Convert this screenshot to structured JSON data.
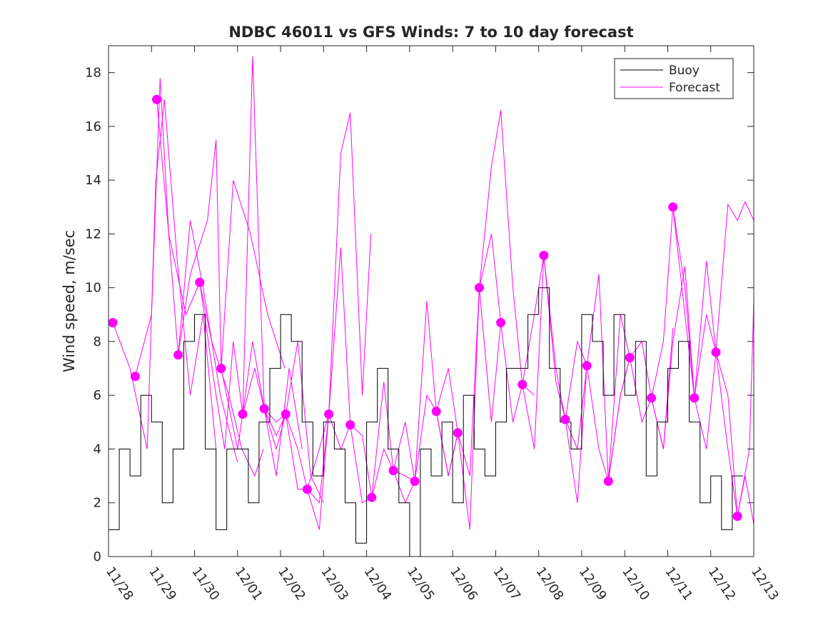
{
  "chart_data": {
    "type": "line",
    "title": "NDBC 46011 vs GFS Winds: 7 to 10 day forecast",
    "xlabel": "",
    "ylabel": "Wind speed, m/sec",
    "xlim": [
      0,
      15
    ],
    "ylim": [
      0,
      19
    ],
    "grid": false,
    "legend_position": "top-right",
    "x_tick_labels": [
      "11/28",
      "11/29",
      "11/30",
      "12/01",
      "12/02",
      "12/03",
      "12/04",
      "12/05",
      "12/06",
      "12/07",
      "12/08",
      "12/09",
      "12/10",
      "12/11",
      "12/12",
      "12/13"
    ],
    "y_ticks": [
      0,
      2,
      4,
      6,
      8,
      10,
      12,
      14,
      16,
      18
    ],
    "legend": [
      {
        "name": "Buoy",
        "color": "#000000"
      },
      {
        "name": "Forecast",
        "color": "#ff00ff"
      }
    ],
    "colors": {
      "buoy": "#000000",
      "forecast": "#ff00ff"
    },
    "series": [
      {
        "name": "Buoy",
        "x_day_offset": [
          0.0,
          0.25,
          0.5,
          0.75,
          1.0,
          1.25,
          1.5,
          1.75,
          2.0,
          2.25,
          2.5,
          2.75,
          3.0,
          3.25,
          3.5,
          3.75,
          4.0,
          4.25,
          4.5,
          4.75,
          5.0,
          5.25,
          5.5,
          5.75,
          6.0,
          6.25,
          6.5,
          6.75,
          7.0,
          7.25,
          7.5,
          7.75,
          8.0,
          8.25,
          8.5,
          8.75,
          9.0,
          9.25,
          9.5,
          9.75,
          10.0,
          10.25,
          10.5,
          10.75,
          11.0,
          11.25,
          11.5,
          11.75,
          12.0,
          12.25,
          12.5,
          12.75,
          13.0,
          13.25,
          13.5,
          13.75,
          14.0,
          14.25,
          14.5,
          14.75
        ],
        "values": [
          1,
          4,
          3,
          6,
          5,
          2,
          4,
          8,
          9,
          4,
          1,
          4,
          4,
          2,
          5,
          7,
          9,
          8,
          5,
          3,
          5,
          4,
          2,
          0.5,
          5,
          7,
          4,
          2,
          0,
          4,
          3,
          5,
          2,
          6,
          4,
          3,
          5,
          7,
          7,
          9,
          10,
          7,
          5,
          4,
          9,
          8,
          6,
          9,
          6,
          8,
          3,
          5,
          7,
          8,
          5,
          2,
          3,
          1,
          3,
          3
        ]
      },
      {
        "name": "Forecast",
        "markers": [
          {
            "x": 0.1,
            "y": 8.7
          },
          {
            "x": 0.62,
            "y": 6.7
          },
          {
            "x": 1.12,
            "y": 17.0
          },
          {
            "x": 1.62,
            "y": 7.5
          },
          {
            "x": 2.12,
            "y": 10.2
          },
          {
            "x": 2.62,
            "y": 7.0
          },
          {
            "x": 3.12,
            "y": 5.3
          },
          {
            "x": 3.62,
            "y": 5.5
          },
          {
            "x": 4.12,
            "y": 5.3
          },
          {
            "x": 4.62,
            "y": 2.5
          },
          {
            "x": 5.12,
            "y": 5.3
          },
          {
            "x": 5.62,
            "y": 4.9
          },
          {
            "x": 6.12,
            "y": 2.2
          },
          {
            "x": 6.62,
            "y": 3.2
          },
          {
            "x": 7.12,
            "y": 2.8
          },
          {
            "x": 7.62,
            "y": 5.4
          },
          {
            "x": 8.12,
            "y": 4.6
          },
          {
            "x": 8.62,
            "y": 10.0
          },
          {
            "x": 9.12,
            "y": 8.7
          },
          {
            "x": 9.62,
            "y": 6.4
          },
          {
            "x": 10.12,
            "y": 11.2
          },
          {
            "x": 10.62,
            "y": 5.1
          },
          {
            "x": 11.12,
            "y": 7.1
          },
          {
            "x": 11.62,
            "y": 2.8
          },
          {
            "x": 12.12,
            "y": 7.4
          },
          {
            "x": 12.62,
            "y": 5.9
          },
          {
            "x": 13.12,
            "y": 13.0
          },
          {
            "x": 13.62,
            "y": 5.9
          },
          {
            "x": 14.12,
            "y": 7.6
          },
          {
            "x": 14.62,
            "y": 1.5
          }
        ],
        "runs": [
          {
            "x": [
              0.1,
              0.5,
              0.9,
              1.1,
              1.3,
              1.6,
              1.9,
              2.2,
              2.5
            ],
            "values": [
              8.7,
              7.0,
              4.0,
              14.0,
              17.0,
              11.0,
              6.0,
              9.0,
              4.0
            ]
          },
          {
            "x": [
              0.62,
              1.0,
              1.2,
              1.4,
              1.62,
              1.9,
              2.2,
              2.6,
              3.0
            ],
            "values": [
              6.7,
              9.0,
              17.8,
              12.0,
              7.5,
              12.5,
              10.0,
              6.0,
              3.5
            ]
          },
          {
            "x": [
              1.12,
              1.4,
              1.8,
              2.12,
              2.4,
              2.8,
              3.1,
              3.4,
              3.6
            ],
            "values": [
              17.0,
              12.0,
              9.0,
              10.2,
              8.0,
              6.0,
              4.0,
              3.0,
              4.0
            ]
          },
          {
            "x": [
              1.62,
              1.9,
              2.3,
              2.5,
              2.62,
              2.9,
              3.3,
              3.7,
              4.1
            ],
            "values": [
              7.5,
              10.5,
              12.5,
              15.5,
              7.0,
              14.0,
              12.0,
              9.0,
              7.0
            ]
          },
          {
            "x": [
              2.12,
              2.5,
              2.7,
              2.9,
              3.12,
              3.35,
              3.62,
              3.9,
              4.2,
              4.5
            ],
            "values": [
              10.2,
              6.0,
              4.0,
              8.0,
              5.3,
              18.6,
              5.5,
              3.0,
              7.0,
              4.0
            ]
          },
          {
            "x": [
              2.62,
              3.0,
              3.12,
              3.35,
              3.62,
              3.9,
              4.12,
              4.4,
              4.7,
              5.0
            ],
            "values": [
              7.0,
              4.0,
              5.3,
              8.0,
              5.5,
              4.5,
              5.3,
              8.0,
              3.0,
              2.0
            ]
          },
          {
            "x": [
              3.12,
              3.4,
              3.62,
              3.9,
              4.12,
              4.4,
              4.62,
              4.9,
              5.12,
              5.4,
              5.62
            ],
            "values": [
              5.3,
              7.0,
              5.5,
              5.0,
              5.3,
              2.5,
              2.5,
              4.0,
              5.3,
              11.5,
              4.9
            ]
          },
          {
            "x": [
              3.62,
              3.9,
              4.12,
              4.4,
              4.62,
              4.9,
              5.12,
              5.4,
              5.62,
              5.9,
              6.1
            ],
            "values": [
              5.5,
              4.0,
              5.3,
              4.0,
              2.5,
              1.0,
              5.3,
              15.0,
              16.5,
              6.0,
              12.0
            ]
          },
          {
            "x": [
              4.62,
              4.9,
              5.12,
              5.4,
              5.62,
              5.9,
              6.12,
              6.4,
              6.62,
              6.9,
              7.12
            ],
            "values": [
              2.5,
              2.0,
              5.3,
              4.0,
              4.9,
              2.0,
              2.2,
              6.5,
              3.2,
              3.0,
              2.8
            ]
          },
          {
            "x": [
              5.62,
              5.9,
              6.12,
              6.4,
              6.62,
              6.9,
              7.12,
              7.4,
              7.62,
              7.9,
              8.12
            ],
            "values": [
              4.9,
              4.5,
              2.2,
              4.0,
              3.2,
              5.0,
              2.8,
              9.5,
              5.4,
              3.0,
              4.6
            ]
          },
          {
            "x": [
              6.62,
              6.9,
              7.12,
              7.4,
              7.62,
              7.9,
              8.12,
              8.4,
              8.62,
              8.9,
              9.12
            ],
            "values": [
              3.2,
              2.0,
              2.8,
              6.0,
              5.4,
              7.0,
              4.6,
              3.0,
              10.0,
              12.0,
              8.7
            ]
          },
          {
            "x": [
              7.62,
              7.9,
              8.12,
              8.4,
              8.62,
              8.9,
              9.12,
              9.4,
              9.62,
              9.9
            ],
            "values": [
              5.4,
              3.0,
              4.6,
              1.0,
              10.0,
              14.5,
              16.6,
              10.0,
              6.4,
              6.0
            ]
          },
          {
            "x": [
              8.62,
              8.9,
              9.12,
              9.4,
              9.62,
              9.9,
              10.12,
              10.4,
              10.62,
              10.9,
              11.12
            ],
            "values": [
              10.0,
              5.0,
              8.7,
              5.0,
              6.4,
              9.0,
              11.2,
              7.0,
              5.1,
              4.0,
              7.1
            ]
          },
          {
            "x": [
              9.62,
              9.9,
              10.12,
              10.4,
              10.62,
              10.9,
              11.12,
              11.4,
              11.62,
              11.9,
              12.12
            ],
            "values": [
              6.4,
              4.0,
              11.2,
              6.5,
              5.1,
              8.0,
              7.1,
              10.5,
              2.8,
              9.0,
              7.4
            ]
          },
          {
            "x": [
              10.62,
              10.9,
              11.12,
              11.4,
              11.62,
              11.9,
              12.12,
              12.4,
              12.62,
              12.9,
              13.12
            ],
            "values": [
              5.1,
              2.0,
              7.1,
              4.0,
              2.8,
              6.0,
              7.4,
              8.0,
              5.9,
              4.0,
              8.5
            ]
          },
          {
            "x": [
              11.62,
              11.9,
              12.12,
              12.4,
              12.62,
              12.9,
              13.12,
              13.4,
              13.62,
              13.9,
              14.12
            ],
            "values": [
              2.8,
              6.0,
              7.4,
              5.0,
              5.9,
              4.0,
              8.0,
              10.8,
              5.9,
              4.0,
              7.6
            ]
          },
          {
            "x": [
              12.62,
              12.9,
              13.12,
              13.4,
              13.62,
              13.9,
              14.12,
              14.4,
              14.62,
              14.9,
              15.0
            ],
            "values": [
              5.9,
              8.0,
              13.0,
              9.0,
              5.9,
              11.0,
              7.6,
              4.0,
              1.5,
              4.0,
              9.5
            ]
          },
          {
            "x": [
              13.12,
              13.4,
              13.62,
              13.9,
              14.12,
              14.4,
              14.62,
              14.8,
              15.0
            ],
            "values": [
              13.0,
              10.0,
              5.9,
              9.0,
              7.6,
              13.1,
              12.5,
              13.2,
              12.5
            ]
          },
          {
            "x": [
              14.12,
              14.4,
              14.62,
              14.8,
              15.0
            ],
            "values": [
              7.6,
              6.0,
              1.5,
              3.0,
              1.2
            ]
          }
        ]
      }
    ]
  }
}
